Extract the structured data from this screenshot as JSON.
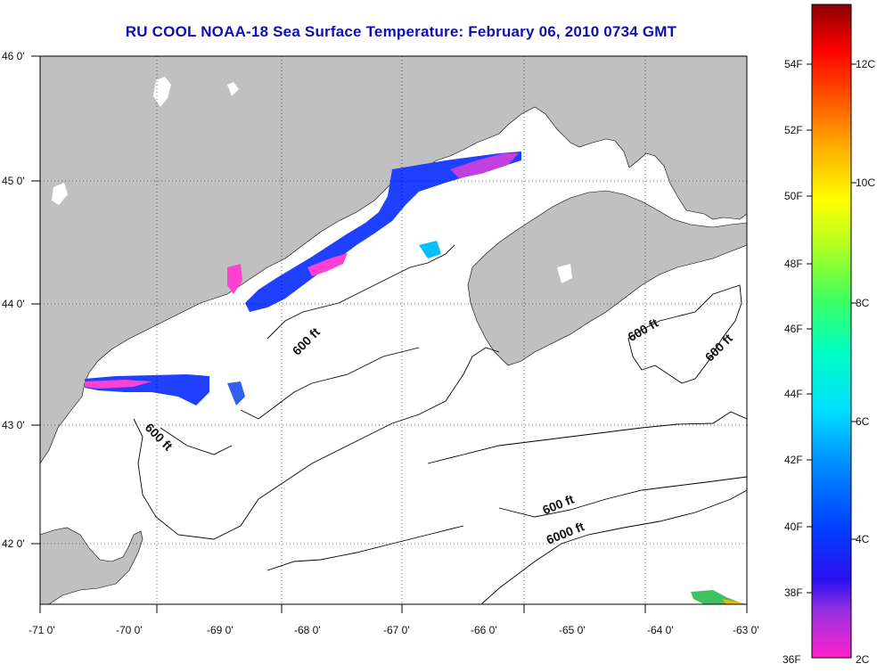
{
  "title": "RU COOL  NOAA-18  Sea Surface Temperature:  February 06, 2010 0734 GMT",
  "axes": {
    "x_ticks": [
      "-71 0'",
      "-70 0'",
      "-69 0'",
      "-68 0'",
      "-67 0'",
      "-66 0'",
      "-65 0'",
      "-64 0'",
      "-63 0'"
    ],
    "y_ticks": [
      "46 0'",
      "45 0'",
      "44 0'",
      "43 0'",
      "42 0'"
    ]
  },
  "contour_labels": [
    "600 ft",
    "600 ft",
    "600 ft",
    "600 ft",
    "600 ft",
    "6000 ft"
  ],
  "colorbar": {
    "fahrenheit": [
      "54F",
      "52F",
      "50F",
      "48F",
      "46F",
      "44F",
      "42F",
      "40F",
      "38F",
      "36F"
    ],
    "celsius": [
      "12C",
      "10C",
      "8C",
      "6C",
      "4C",
      "2C"
    ]
  },
  "colors": {
    "land": "#c0c0c0",
    "title": "#1010b0",
    "grid": "#000000"
  }
}
